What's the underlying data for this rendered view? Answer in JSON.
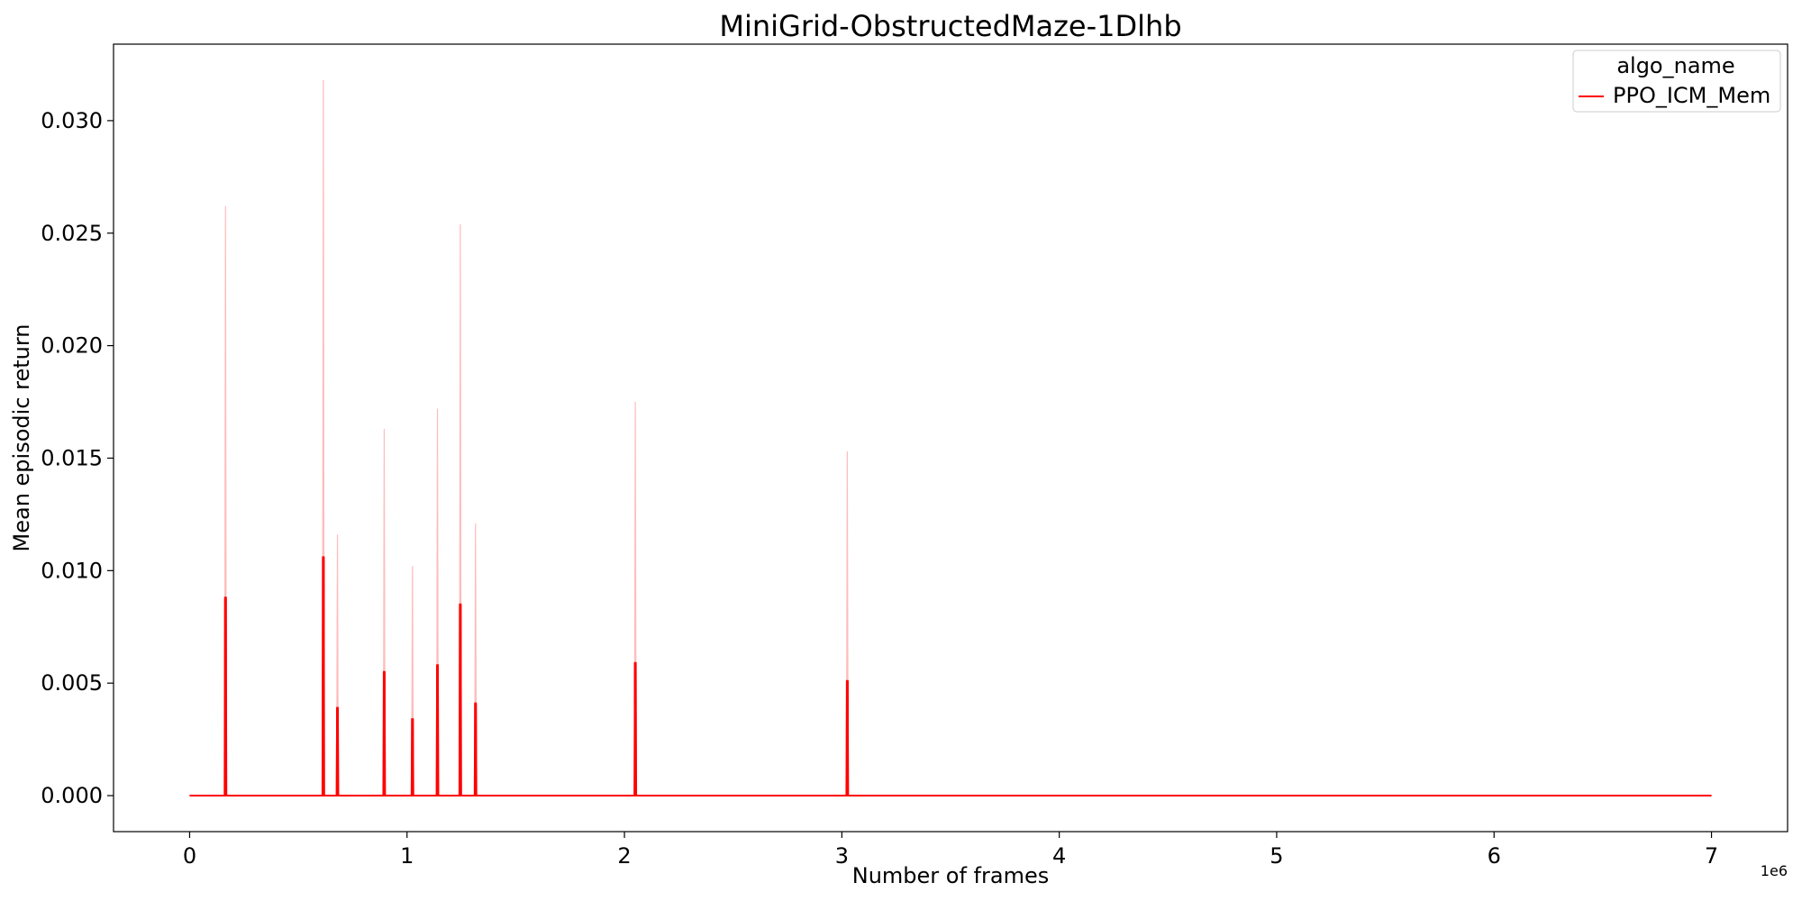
{
  "chart_data": {
    "type": "line",
    "title": "MiniGrid-ObstructedMaze-1Dlhb",
    "xlabel": "Number of frames",
    "ylabel": "Mean episodic return",
    "x_offset_text": "1e6",
    "xlim": [
      -0.35,
      7.35
    ],
    "ylim": [
      -0.0016,
      0.0334
    ],
    "x_ticks": [
      0,
      1,
      2,
      3,
      4,
      5,
      6,
      7
    ],
    "x_tick_labels": [
      "0",
      "1",
      "2",
      "3",
      "4",
      "5",
      "6",
      "7"
    ],
    "y_ticks": [
      0.0,
      0.005,
      0.01,
      0.015,
      0.02,
      0.025,
      0.03
    ],
    "y_tick_labels": [
      "0.000",
      "0.005",
      "0.010",
      "0.015",
      "0.020",
      "0.025",
      "0.030"
    ],
    "x_range": [
      0,
      7
    ],
    "grid": false,
    "legend": {
      "title": "algo_name",
      "placement": "top-right"
    },
    "series": [
      {
        "name": "PPO_ICM_Mem",
        "color": "#ff0000",
        "band_color": "#ffbcbc",
        "baseline": 0.0,
        "spikes": [
          {
            "x": 0.165,
            "mean": 0.0088,
            "upper": 0.0262
          },
          {
            "x": 0.615,
            "mean": 0.0106,
            "upper": 0.0318
          },
          {
            "x": 0.68,
            "mean": 0.0039,
            "upper": 0.0116
          },
          {
            "x": 0.895,
            "mean": 0.0055,
            "upper": 0.0163
          },
          {
            "x": 1.025,
            "mean": 0.0034,
            "upper": 0.0102
          },
          {
            "x": 1.14,
            "mean": 0.0058,
            "upper": 0.0172
          },
          {
            "x": 1.245,
            "mean": 0.0085,
            "upper": 0.0254
          },
          {
            "x": 1.315,
            "mean": 0.0041,
            "upper": 0.0121
          },
          {
            "x": 2.05,
            "mean": 0.0059,
            "upper": 0.0175
          },
          {
            "x": 3.025,
            "mean": 0.0051,
            "upper": 0.0153
          }
        ]
      }
    ]
  }
}
